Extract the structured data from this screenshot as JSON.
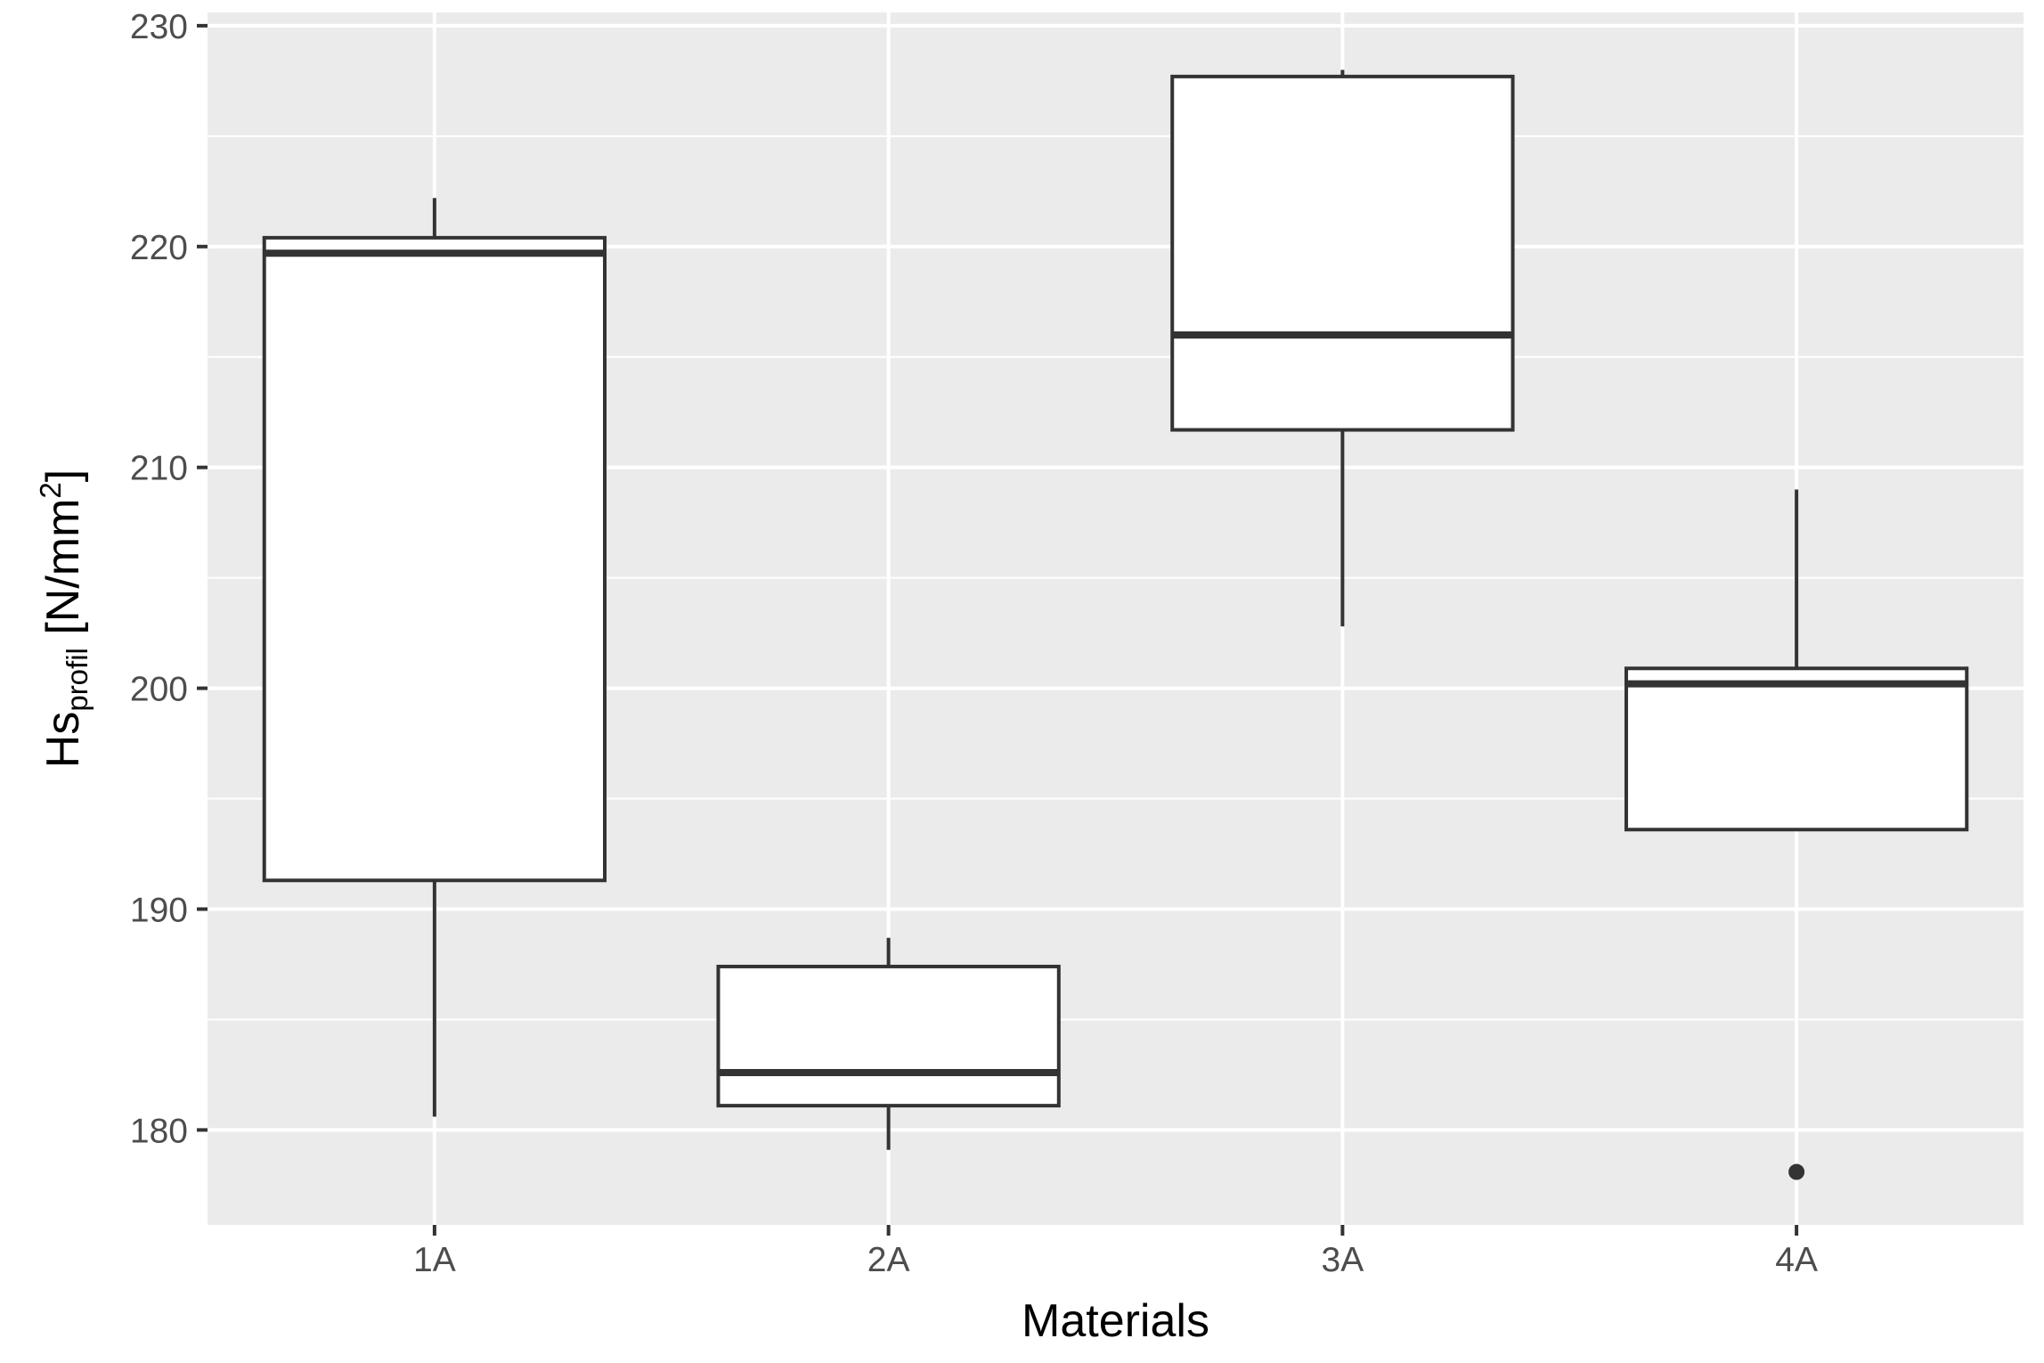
{
  "chart_data": {
    "type": "boxplot",
    "title": "",
    "xlabel": "Materials",
    "ylabel": {
      "main": "Hs",
      "subscript": "profil",
      "unit_prefix": " [N/mm",
      "superscript": "2",
      "unit_suffix": "]"
    },
    "categories": [
      "1A",
      "2A",
      "3A",
      "4A"
    ],
    "boxes": [
      {
        "category": "1A",
        "whisker_low": 180.6,
        "q1": 191.3,
        "median": 219.7,
        "q3": 220.4,
        "whisker_high": 222.2,
        "outliers": []
      },
      {
        "category": "2A",
        "whisker_low": 179.1,
        "q1": 181.1,
        "median": 182.6,
        "q3": 187.4,
        "whisker_high": 188.7,
        "outliers": []
      },
      {
        "category": "3A",
        "whisker_low": 202.8,
        "q1": 211.7,
        "median": 216.0,
        "q3": 227.7,
        "whisker_high": 228.0,
        "outliers": []
      },
      {
        "category": "4A",
        "whisker_low": 193.6,
        "q1": 193.6,
        "median": 200.2,
        "q3": 200.9,
        "whisker_high": 209.0,
        "outliers": [
          178.1
        ]
      }
    ],
    "y_ticks": [
      180,
      190,
      200,
      210,
      220,
      230
    ],
    "ylim": [
      175.7,
      230.6
    ],
    "grid": true,
    "legend": "none",
    "colors": {
      "panel_background": "#ebebeb",
      "grid_line": "#ffffff",
      "box_fill": "#ffffff",
      "box_stroke": "#333333",
      "tick_text": "#4d4d4d",
      "title_text": "#000000"
    }
  }
}
